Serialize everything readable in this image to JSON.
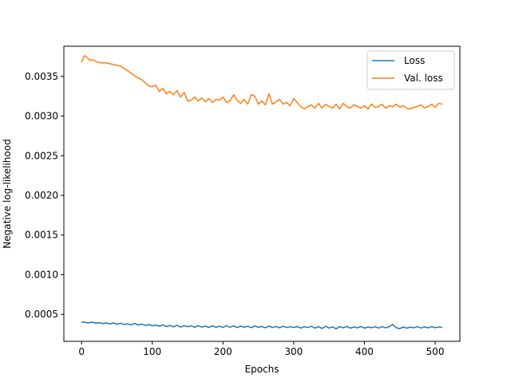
{
  "chart_data": {
    "type": "line",
    "title": "",
    "xlabel": "Epochs",
    "ylabel": "Negative log-likelihood",
    "xlim": [
      -25,
      535
    ],
    "ylim": [
      0.00016,
      0.00388
    ],
    "xticks": [
      0,
      100,
      200,
      300,
      400,
      500
    ],
    "xtick_labels": [
      "0",
      "100",
      "200",
      "300",
      "400",
      "500"
    ],
    "yticks": [
      0.0005,
      0.001,
      0.0015,
      0.002,
      0.0025,
      0.003,
      0.0035
    ],
    "ytick_labels": [
      "0.0005",
      "0.0010",
      "0.0015",
      "0.0020",
      "0.0025",
      "0.0030",
      "0.0035"
    ],
    "grid": false,
    "legend": {
      "position": "top-right"
    },
    "series": [
      {
        "name": "Loss",
        "color": "#1f77b4",
        "points": [
          [
            0,
            0.000405
          ],
          [
            5,
            0.000398
          ],
          [
            10,
            0.000392
          ],
          [
            15,
            0.000402
          ],
          [
            20,
            0.000388
          ],
          [
            25,
            0.000395
          ],
          [
            30,
            0.000383
          ],
          [
            35,
            0.000392
          ],
          [
            40,
            0.00038
          ],
          [
            45,
            0.000392
          ],
          [
            50,
            0.000375
          ],
          [
            55,
            0.000388
          ],
          [
            60,
            0.000372
          ],
          [
            65,
            0.00038
          ],
          [
            70,
            0.000368
          ],
          [
            75,
            0.000385
          ],
          [
            80,
            0.000366
          ],
          [
            85,
            0.000378
          ],
          [
            90,
            0.00036
          ],
          [
            95,
            0.000372
          ],
          [
            100,
            0.000355
          ],
          [
            105,
            0.000365
          ],
          [
            110,
            0.00035
          ],
          [
            115,
            0.000368
          ],
          [
            120,
            0.000346
          ],
          [
            125,
            0.00036
          ],
          [
            130,
            0.000342
          ],
          [
            135,
            0.000362
          ],
          [
            140,
            0.00034
          ],
          [
            145,
            0.000358
          ],
          [
            150,
            0.000345
          ],
          [
            155,
            0.000355
          ],
          [
            160,
            0.000338
          ],
          [
            165,
            0.000358
          ],
          [
            170,
            0.00034
          ],
          [
            175,
            0.000352
          ],
          [
            180,
            0.000336
          ],
          [
            185,
            0.000355
          ],
          [
            190,
            0.000338
          ],
          [
            195,
            0.00035
          ],
          [
            200,
            0.000335
          ],
          [
            205,
            0.00036
          ],
          [
            210,
            0.000336
          ],
          [
            215,
            0.000356
          ],
          [
            220,
            0.000333
          ],
          [
            225,
            0.000352
          ],
          [
            230,
            0.000338
          ],
          [
            235,
            0.00035
          ],
          [
            240,
            0.000332
          ],
          [
            245,
            0.000355
          ],
          [
            250,
            0.000336
          ],
          [
            255,
            0.000348
          ],
          [
            260,
            0.00033
          ],
          [
            265,
            0.000352
          ],
          [
            270,
            0.000334
          ],
          [
            275,
            0.000348
          ],
          [
            280,
            0.00033
          ],
          [
            285,
            0.00035
          ],
          [
            290,
            0.000334
          ],
          [
            295,
            0.000344
          ],
          [
            300,
            0.000335
          ],
          [
            305,
            0.000346
          ],
          [
            310,
            0.000328
          ],
          [
            315,
            0.000345
          ],
          [
            320,
            0.000334
          ],
          [
            325,
            0.00035
          ],
          [
            330,
            0.000326
          ],
          [
            335,
            0.000345
          ],
          [
            340,
            0.000322
          ],
          [
            345,
            0.00035
          ],
          [
            350,
            0.000328
          ],
          [
            355,
            0.000342
          ],
          [
            360,
            0.000318
          ],
          [
            365,
            0.000345
          ],
          [
            370,
            0.00033
          ],
          [
            375,
            0.000348
          ],
          [
            380,
            0.000326
          ],
          [
            385,
            0.000342
          ],
          [
            390,
            0.00033
          ],
          [
            395,
            0.000346
          ],
          [
            400,
            0.000326
          ],
          [
            405,
            0.00034
          ],
          [
            410,
            0.000332
          ],
          [
            415,
            0.000344
          ],
          [
            420,
            0.000328
          ],
          [
            425,
            0.000345
          ],
          [
            430,
            0.00033
          ],
          [
            435,
            0.000344
          ],
          [
            440,
            0.000372
          ],
          [
            445,
            0.000332
          ],
          [
            450,
            0.00032
          ],
          [
            455,
            0.000342
          ],
          [
            460,
            0.000326
          ],
          [
            465,
            0.00034
          ],
          [
            470,
            0.00033
          ],
          [
            475,
            0.000345
          ],
          [
            480,
            0.000328
          ],
          [
            485,
            0.000342
          ],
          [
            490,
            0.00033
          ],
          [
            495,
            0.000345
          ],
          [
            500,
            0.000332
          ],
          [
            505,
            0.000342
          ],
          [
            510,
            0.000335
          ]
        ]
      },
      {
        "name": "Val. loss",
        "color": "#ff7f0e",
        "points": [
          [
            0,
            0.00368
          ],
          [
            4,
            0.00376
          ],
          [
            8,
            0.00374
          ],
          [
            12,
            0.0037
          ],
          [
            16,
            0.00371
          ],
          [
            20,
            0.00369
          ],
          [
            25,
            0.003675
          ],
          [
            30,
            0.00367
          ],
          [
            35,
            0.00367
          ],
          [
            40,
            0.00366
          ],
          [
            45,
            0.00365
          ],
          [
            50,
            0.00364
          ],
          [
            55,
            0.00363
          ],
          [
            60,
            0.0036
          ],
          [
            65,
            0.00357
          ],
          [
            70,
            0.00354
          ],
          [
            75,
            0.00351
          ],
          [
            80,
            0.00348
          ],
          [
            85,
            0.00346
          ],
          [
            90,
            0.00342
          ],
          [
            95,
            0.00338
          ],
          [
            100,
            0.00337
          ],
          [
            105,
            0.00339
          ],
          [
            110,
            0.00331
          ],
          [
            115,
            0.00335
          ],
          [
            120,
            0.00328
          ],
          [
            125,
            0.00331
          ],
          [
            130,
            0.00327
          ],
          [
            135,
            0.00332
          ],
          [
            140,
            0.00324
          ],
          [
            145,
            0.0033
          ],
          [
            150,
            0.00319
          ],
          [
            155,
            0.0032
          ],
          [
            160,
            0.00324
          ],
          [
            165,
            0.00319
          ],
          [
            170,
            0.00323
          ],
          [
            175,
            0.00318
          ],
          [
            180,
            0.00322
          ],
          [
            185,
            0.00317
          ],
          [
            190,
            0.00321
          ],
          [
            195,
            0.0032
          ],
          [
            200,
            0.00324
          ],
          [
            205,
            0.00317
          ],
          [
            210,
            0.00319
          ],
          [
            215,
            0.00327
          ],
          [
            220,
            0.0032
          ],
          [
            225,
            0.00316
          ],
          [
            230,
            0.00321
          ],
          [
            235,
            0.00315
          ],
          [
            240,
            0.00327
          ],
          [
            245,
            0.00325
          ],
          [
            250,
            0.00315
          ],
          [
            255,
            0.00319
          ],
          [
            260,
            0.00314
          ],
          [
            265,
            0.00328
          ],
          [
            270,
            0.00315
          ],
          [
            275,
            0.00318
          ],
          [
            280,
            0.00321
          ],
          [
            285,
            0.00315
          ],
          [
            290,
            0.00317
          ],
          [
            295,
            0.00313
          ],
          [
            300,
            0.00322
          ],
          [
            305,
            0.00317
          ],
          [
            310,
            0.00312
          ],
          [
            315,
            0.00309
          ],
          [
            320,
            0.00312
          ],
          [
            325,
            0.00314
          ],
          [
            330,
            0.0031
          ],
          [
            335,
            0.00316
          ],
          [
            340,
            0.0031
          ],
          [
            345,
            0.00315
          ],
          [
            350,
            0.00312
          ],
          [
            355,
            0.0031
          ],
          [
            360,
            0.00315
          ],
          [
            365,
            0.00309
          ],
          [
            370,
            0.00316
          ],
          [
            375,
            0.00312
          ],
          [
            380,
            0.0031
          ],
          [
            385,
            0.00314
          ],
          [
            390,
            0.00312
          ],
          [
            395,
            0.0031
          ],
          [
            400,
            0.00313
          ],
          [
            405,
            0.00309
          ],
          [
            410,
            0.00315
          ],
          [
            415,
            0.00311
          ],
          [
            420,
            0.00312
          ],
          [
            425,
            0.00315
          ],
          [
            430,
            0.0031
          ],
          [
            435,
            0.00313
          ],
          [
            440,
            0.00312
          ],
          [
            445,
            0.00315
          ],
          [
            450,
            0.00311
          ],
          [
            455,
            0.00313
          ],
          [
            460,
            0.0031
          ],
          [
            465,
            0.00309
          ],
          [
            470,
            0.00311
          ],
          [
            475,
            0.00312
          ],
          [
            480,
            0.00314
          ],
          [
            485,
            0.0031
          ],
          [
            490,
            0.00312
          ],
          [
            495,
            0.00315
          ],
          [
            500,
            0.00311
          ],
          [
            505,
            0.00316
          ],
          [
            510,
            0.00315
          ]
        ]
      }
    ]
  }
}
